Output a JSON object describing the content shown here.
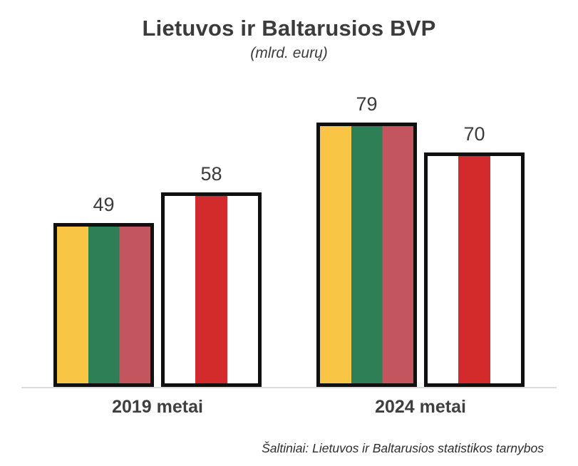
{
  "chart_data": {
    "type": "bar",
    "title": "Lietuvos ir Baltarusios BVP",
    "subtitle": "(mlrd. eurų)",
    "categories": [
      "2019 metai",
      "2024 metai"
    ],
    "series": [
      {
        "id": "lietuva",
        "name": "Lietuva",
        "flag": "lithuania-tricolor",
        "values": [
          49,
          79
        ]
      },
      {
        "id": "baltarusija",
        "name": "Baltarusija",
        "flag": "white-red-white",
        "values": [
          58,
          70
        ]
      }
    ],
    "data_labels": [
      49,
      58,
      79,
      70
    ],
    "ylim": [
      0,
      92
    ],
    "grid": false,
    "legend": "none",
    "source": "Šaltiniai: Lietuvos ir Baltarusios statistikos tarnybos"
  },
  "colors": {
    "lithuania_yellow": "#F8C545",
    "lithuania_green": "#2E7F56",
    "lithuania_red": "#C2555E",
    "belarus_red": "#D32B2C",
    "bar_border": "#101010",
    "text": "#3B3B3B",
    "baseline": "#DCDCDC",
    "background": "#FFFFFF"
  }
}
